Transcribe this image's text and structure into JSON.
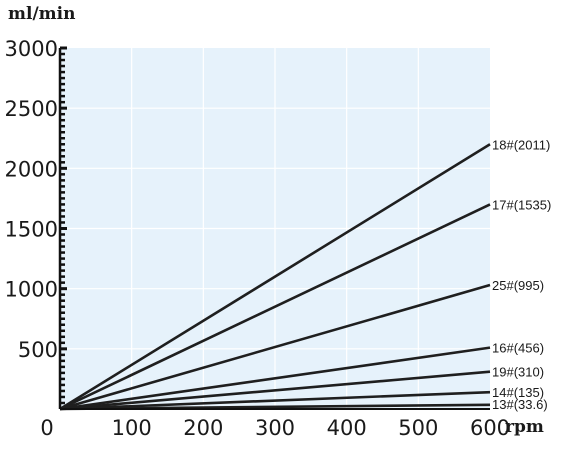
{
  "chart_data": {
    "type": "line",
    "title": "",
    "ylabel": "ml/min",
    "xlabel": "rpm",
    "x_ticks": [
      "0",
      "100",
      "200",
      "300",
      "400",
      "500",
      "600"
    ],
    "y_ticks": [
      "500",
      "1000",
      "1500",
      "2000",
      "2500",
      "3000"
    ],
    "xlim": [
      0,
      600
    ],
    "ylim": [
      0,
      3000
    ],
    "grid": true,
    "colors": {
      "plot_bg": "#e6f2fb",
      "grid": "#ffffff",
      "line": "#1f1f1f",
      "axis": "#111111"
    },
    "series": [
      {
        "name": "18#(2011)",
        "x": [
          0,
          600
        ],
        "y": [
          0,
          2200
        ]
      },
      {
        "name": "17#(1535)",
        "x": [
          0,
          600
        ],
        "y": [
          0,
          1700
        ]
      },
      {
        "name": "25#(995)",
        "x": [
          0,
          600
        ],
        "y": [
          0,
          1030
        ]
      },
      {
        "name": "16#(456)",
        "x": [
          0,
          600
        ],
        "y": [
          0,
          510
        ]
      },
      {
        "name": "19#(310)",
        "x": [
          0,
          600
        ],
        "y": [
          0,
          310
        ]
      },
      {
        "name": "14#(135)",
        "x": [
          0,
          600
        ],
        "y": [
          0,
          140
        ]
      },
      {
        "name": "13#(33.6)",
        "x": [
          0,
          600
        ],
        "y": [
          0,
          35
        ]
      }
    ]
  }
}
